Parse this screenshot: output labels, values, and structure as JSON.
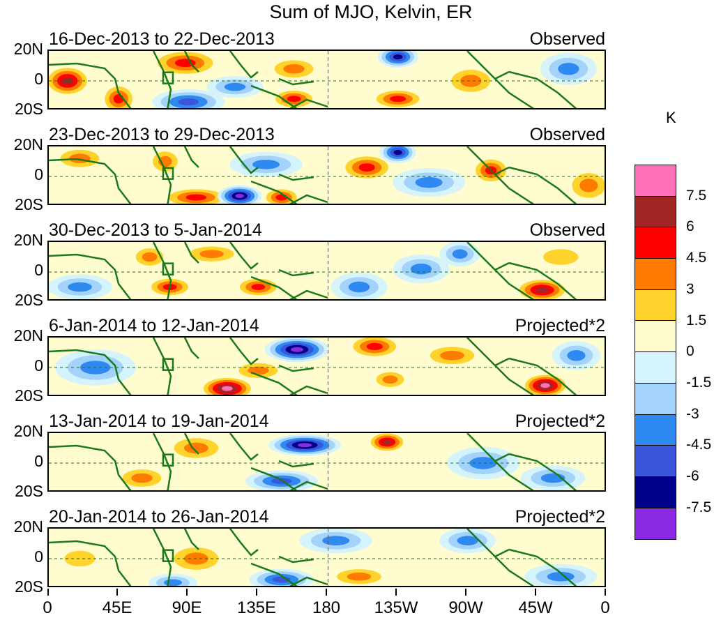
{
  "chart_data": {
    "type": "heatmap",
    "title": "Sum of MJO, Kelvin, ER",
    "units": "K",
    "x_ticks": [
      "0",
      "45E",
      "90E",
      "135E",
      "180",
      "135W",
      "90W",
      "45W",
      "0"
    ],
    "y_ticks": [
      "20N",
      "0",
      "20S"
    ],
    "lat_range": [
      -20,
      20
    ],
    "lon_range": [
      0,
      360
    ],
    "legend_levels": [
      "7.5",
      "6",
      "4.5",
      "3",
      "1.5",
      "0",
      "-1.5",
      "-3",
      "-4.5",
      "-6",
      "-7.5"
    ],
    "legend_colors": [
      "#ff70b8",
      "#a12727",
      "#ff0000",
      "#ff7b00",
      "#ffd32c",
      "#fffccf",
      "#d4f3fb",
      "#a3d2fa",
      "#2e8af1",
      "#3c56db",
      "#00008b",
      "#8a2be2"
    ],
    "panels": [
      {
        "period": "16-Dec-2013 to 22-Dec-2013",
        "label": "Observed",
        "anomalies": [
          {
            "lon": 12,
            "lat": 0,
            "value": 6,
            "rlon": 12,
            "rlat": 9
          },
          {
            "lon": 45,
            "lat": -12,
            "value": 4.5,
            "rlon": 9,
            "rlat": 9
          },
          {
            "lon": 88,
            "lat": 12,
            "value": 4.5,
            "rlon": 18,
            "rlat": 8
          },
          {
            "lon": 90,
            "lat": -14,
            "value": -4.5,
            "rlon": 18,
            "rlat": 7
          },
          {
            "lon": 120,
            "lat": -4,
            "value": -3,
            "rlon": 14,
            "rlat": 6
          },
          {
            "lon": 158,
            "lat": 8,
            "value": 3,
            "rlon": 14,
            "rlat": 7
          },
          {
            "lon": 158,
            "lat": -12,
            "value": 4.5,
            "rlon": 12,
            "rlat": 6
          },
          {
            "lon": 225,
            "lat": 16,
            "value": -6,
            "rlon": 10,
            "rlat": 6
          },
          {
            "lon": 225,
            "lat": -12,
            "value": 4.5,
            "rlon": 14,
            "rlat": 6
          },
          {
            "lon": 272,
            "lat": 0,
            "value": 3,
            "rlon": 14,
            "rlat": 9
          },
          {
            "lon": 335,
            "lat": 8,
            "value": -3,
            "rlon": 14,
            "rlat": 9
          }
        ]
      },
      {
        "period": "23-Dec-2013 to 29-Dec-2013",
        "label": "Observed",
        "anomalies": [
          {
            "lon": 20,
            "lat": 12,
            "value": 3,
            "rlon": 14,
            "rlat": 7
          },
          {
            "lon": 75,
            "lat": 10,
            "value": 3,
            "rlon": 9,
            "rlat": 8
          },
          {
            "lon": 95,
            "lat": -14,
            "value": 4.5,
            "rlon": 18,
            "rlat": 6
          },
          {
            "lon": 123,
            "lat": -13,
            "value": -7.5,
            "rlon": 11,
            "rlat": 6
          },
          {
            "lon": 150,
            "lat": -14,
            "value": 4.5,
            "rlon": 10,
            "rlat": 6
          },
          {
            "lon": 140,
            "lat": 8,
            "value": -3,
            "rlon": 18,
            "rlat": 7
          },
          {
            "lon": 205,
            "lat": 6,
            "value": 4.5,
            "rlon": 14,
            "rlat": 8
          },
          {
            "lon": 225,
            "lat": 16,
            "value": -6,
            "rlon": 9,
            "rlat": 6
          },
          {
            "lon": 245,
            "lat": -4,
            "value": -3,
            "rlon": 18,
            "rlat": 8
          },
          {
            "lon": 285,
            "lat": 4,
            "value": 4.5,
            "rlon": 10,
            "rlat": 8
          },
          {
            "lon": 348,
            "lat": -6,
            "value": 3,
            "rlon": 12,
            "rlat": 10
          }
        ]
      },
      {
        "period": "30-Dec-2013 to 5-Jan-2014",
        "label": "Observed",
        "anomalies": [
          {
            "lon": 20,
            "lat": -10,
            "value": -3,
            "rlon": 16,
            "rlat": 7
          },
          {
            "lon": 78,
            "lat": -10,
            "value": 4.5,
            "rlon": 12,
            "rlat": 6
          },
          {
            "lon": 65,
            "lat": 10,
            "value": 3,
            "rlon": 10,
            "rlat": 7
          },
          {
            "lon": 105,
            "lat": 12,
            "value": 3,
            "rlon": 16,
            "rlat": 6
          },
          {
            "lon": 135,
            "lat": -10,
            "value": 4.5,
            "rlon": 12,
            "rlat": 6
          },
          {
            "lon": 200,
            "lat": -10,
            "value": -3,
            "rlon": 14,
            "rlat": 8
          },
          {
            "lon": 240,
            "lat": 2,
            "value": -3,
            "rlon": 14,
            "rlat": 8
          },
          {
            "lon": 265,
            "lat": 12,
            "value": -3,
            "rlon": 10,
            "rlat": 7
          },
          {
            "lon": 318,
            "lat": -12,
            "value": 6,
            "rlon": 14,
            "rlat": 7
          },
          {
            "lon": 330,
            "lat": 10,
            "value": 1.5,
            "rlon": 16,
            "rlat": 8
          }
        ]
      },
      {
        "period": "6-Jan-2014 to 12-Jan-2014",
        "label": "Projected*2",
        "anomalies": [
          {
            "lon": 30,
            "lat": 0,
            "value": -3,
            "rlon": 20,
            "rlat": 10
          },
          {
            "lon": 115,
            "lat": -14,
            "value": 7.5,
            "rlon": 14,
            "rlat": 7
          },
          {
            "lon": 160,
            "lat": 12,
            "value": -7.5,
            "rlon": 16,
            "rlat": 7
          },
          {
            "lon": 135,
            "lat": -2,
            "value": 3,
            "rlon": 14,
            "rlat": 6
          },
          {
            "lon": 210,
            "lat": 14,
            "value": 4.5,
            "rlon": 14,
            "rlat": 7
          },
          {
            "lon": 220,
            "lat": -8,
            "value": 3,
            "rlon": 10,
            "rlat": 6
          },
          {
            "lon": 260,
            "lat": 8,
            "value": 3,
            "rlon": 16,
            "rlat": 7
          },
          {
            "lon": 320,
            "lat": -12,
            "value": 7.5,
            "rlon": 12,
            "rlat": 7
          },
          {
            "lon": 340,
            "lat": 8,
            "value": -3,
            "rlon": 12,
            "rlat": 8
          }
        ]
      },
      {
        "period": "13-Jan-2014 to 19-Jan-2014",
        "label": "Projected*2",
        "anomalies": [
          {
            "lon": 95,
            "lat": 10,
            "value": 3,
            "rlon": 16,
            "rlat": 8
          },
          {
            "lon": 165,
            "lat": 12,
            "value": -7.5,
            "rlon": 18,
            "rlat": 6
          },
          {
            "lon": 218,
            "lat": 14,
            "value": 6,
            "rlon": 10,
            "rlat": 6
          },
          {
            "lon": 150,
            "lat": -12,
            "value": -4.5,
            "rlon": 18,
            "rlat": 6
          },
          {
            "lon": 60,
            "lat": -10,
            "value": 3,
            "rlon": 14,
            "rlat": 7
          },
          {
            "lon": 280,
            "lat": 0,
            "value": -3,
            "rlon": 18,
            "rlat": 9
          },
          {
            "lon": 325,
            "lat": -10,
            "value": -3,
            "rlon": 16,
            "rlat": 7
          }
        ]
      },
      {
        "period": "20-Jan-2014 to 26-Jan-2014",
        "label": "Projected*2",
        "anomalies": [
          {
            "lon": 95,
            "lat": 0,
            "value": 3,
            "rlon": 16,
            "rlat": 9
          },
          {
            "lon": 150,
            "lat": -14,
            "value": -4.5,
            "rlon": 16,
            "rlat": 6
          },
          {
            "lon": 185,
            "lat": 12,
            "value": -3,
            "rlon": 18,
            "rlat": 7
          },
          {
            "lon": 80,
            "lat": -16,
            "value": -3,
            "rlon": 12,
            "rlat": 5
          },
          {
            "lon": 200,
            "lat": -12,
            "value": 3,
            "rlon": 16,
            "rlat": 6
          },
          {
            "lon": 270,
            "lat": 12,
            "value": -3,
            "rlon": 14,
            "rlat": 7
          },
          {
            "lon": 330,
            "lat": -12,
            "value": -3,
            "rlon": 18,
            "rlat": 7
          },
          {
            "lon": 20,
            "lat": 0,
            "value": 1.5,
            "rlon": 14,
            "rlat": 8
          }
        ]
      }
    ]
  }
}
